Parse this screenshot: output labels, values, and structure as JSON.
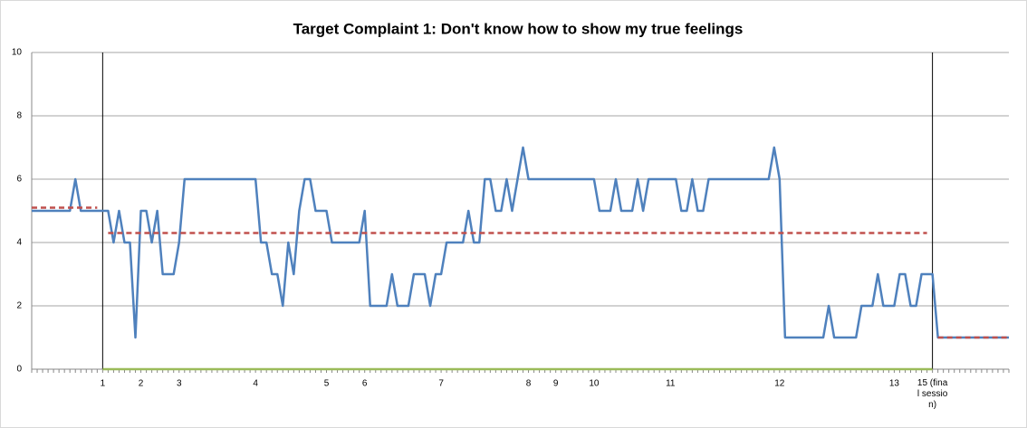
{
  "chart_data": {
    "type": "line",
    "title": "Target Complaint 1: Don't know how to show my true feelings",
    "categories": [
      null,
      null,
      null,
      null,
      null,
      null,
      null,
      null,
      null,
      null,
      null,
      null,
      null,
      "1",
      null,
      null,
      null,
      null,
      null,
      null,
      "2",
      null,
      null,
      null,
      null,
      null,
      null,
      "3",
      null,
      null,
      null,
      null,
      null,
      null,
      null,
      null,
      null,
      null,
      null,
      null,
      null,
      "4",
      null,
      null,
      null,
      null,
      null,
      null,
      null,
      null,
      null,
      null,
      null,
      null,
      "5",
      null,
      null,
      null,
      null,
      null,
      null,
      "6",
      null,
      null,
      null,
      null,
      null,
      null,
      null,
      null,
      null,
      null,
      null,
      null,
      null,
      "7",
      null,
      null,
      null,
      null,
      null,
      null,
      null,
      null,
      null,
      null,
      null,
      null,
      null,
      null,
      null,
      "8",
      null,
      null,
      null,
      null,
      "9",
      null,
      null,
      null,
      null,
      null,
      null,
      "10",
      null,
      null,
      null,
      null,
      null,
      null,
      null,
      null,
      null,
      null,
      null,
      null,
      null,
      "11",
      null,
      null,
      null,
      null,
      null,
      null,
      null,
      null,
      null,
      null,
      null,
      null,
      null,
      null,
      null,
      null,
      null,
      null,
      null,
      "12",
      null,
      null,
      null,
      null,
      null,
      null,
      null,
      null,
      null,
      null,
      null,
      null,
      null,
      null,
      null,
      null,
      null,
      null,
      null,
      null,
      "13",
      null,
      null,
      null,
      null,
      null,
      null,
      "15 (final session)",
      null,
      null,
      null,
      null,
      null,
      null,
      null,
      null,
      null,
      null,
      null,
      null,
      null,
      null
    ],
    "series": [
      {
        "color": "#4f81bd",
        "linestyle": "solid",
        "values": [
          5,
          5,
          5,
          5,
          5,
          5,
          5,
          5,
          6,
          5,
          5,
          5,
          5,
          5,
          5,
          4,
          5,
          4,
          4,
          1,
          5,
          5,
          4,
          5,
          3,
          3,
          3,
          4,
          6,
          6,
          6,
          6,
          6,
          6,
          6,
          6,
          6,
          6,
          6,
          6,
          6,
          6,
          4,
          4,
          3,
          3,
          2,
          4,
          3,
          5,
          6,
          6,
          5,
          5,
          5,
          4,
          4,
          4,
          4,
          4,
          4,
          5,
          2,
          2,
          2,
          2,
          3,
          2,
          2,
          2,
          3,
          3,
          3,
          2,
          3,
          3,
          4,
          4,
          4,
          4,
          5,
          4,
          4,
          6,
          6,
          5,
          5,
          6,
          5,
          6,
          7,
          6,
          6,
          6,
          6,
          6,
          6,
          6,
          6,
          6,
          6,
          6,
          6,
          6,
          5,
          5,
          5,
          6,
          5,
          5,
          5,
          6,
          5,
          6,
          6,
          6,
          6,
          6,
          6,
          5,
          5,
          6,
          5,
          5,
          6,
          6,
          6,
          6,
          6,
          6,
          6,
          6,
          6,
          6,
          6,
          6,
          7,
          6,
          1,
          1,
          1,
          1,
          1,
          1,
          1,
          1,
          2,
          1,
          1,
          1,
          1,
          1,
          2,
          2,
          2,
          3,
          2,
          2,
          2,
          3,
          3,
          2,
          2,
          3,
          3,
          3,
          1,
          1,
          1,
          1,
          1,
          1,
          1,
          1,
          1,
          1,
          1,
          1,
          1,
          1
        ]
      },
      {
        "color": "#c0504d",
        "linestyle": "dashed",
        "values": [
          5.1,
          5.1,
          5.1,
          5.1,
          5.1,
          5.1,
          5.1,
          5.1,
          5.1,
          5.1,
          5.1,
          5.1,
          5.1,
          null,
          4.3,
          4.3,
          4.3,
          4.3,
          4.3,
          4.3,
          4.3,
          4.3,
          4.3,
          4.3,
          4.3,
          4.3,
          4.3,
          4.3,
          4.3,
          4.3,
          4.3,
          4.3,
          4.3,
          4.3,
          4.3,
          4.3,
          4.3,
          4.3,
          4.3,
          4.3,
          4.3,
          4.3,
          4.3,
          4.3,
          4.3,
          4.3,
          4.3,
          4.3,
          4.3,
          4.3,
          4.3,
          4.3,
          4.3,
          4.3,
          4.3,
          4.3,
          4.3,
          4.3,
          4.3,
          4.3,
          4.3,
          4.3,
          4.3,
          4.3,
          4.3,
          4.3,
          4.3,
          4.3,
          4.3,
          4.3,
          4.3,
          4.3,
          4.3,
          4.3,
          4.3,
          4.3,
          4.3,
          4.3,
          4.3,
          4.3,
          4.3,
          4.3,
          4.3,
          4.3,
          4.3,
          4.3,
          4.3,
          4.3,
          4.3,
          4.3,
          4.3,
          4.3,
          4.3,
          4.3,
          4.3,
          4.3,
          4.3,
          4.3,
          4.3,
          4.3,
          4.3,
          4.3,
          4.3,
          4.3,
          4.3,
          4.3,
          4.3,
          4.3,
          4.3,
          4.3,
          4.3,
          4.3,
          4.3,
          4.3,
          4.3,
          4.3,
          4.3,
          4.3,
          4.3,
          4.3,
          4.3,
          4.3,
          4.3,
          4.3,
          4.3,
          4.3,
          4.3,
          4.3,
          4.3,
          4.3,
          4.3,
          4.3,
          4.3,
          4.3,
          4.3,
          4.3,
          4.3,
          4.3,
          4.3,
          4.3,
          4.3,
          4.3,
          4.3,
          4.3,
          4.3,
          4.3,
          4.3,
          4.3,
          4.3,
          4.3,
          4.3,
          4.3,
          4.3,
          4.3,
          4.3,
          4.3,
          4.3,
          4.3,
          4.3,
          4.3,
          4.3,
          4.3,
          4.3,
          4.3,
          4.3,
          null,
          1,
          1,
          1,
          1,
          1,
          1,
          1,
          1,
          1,
          1,
          1,
          1,
          1,
          1
        ]
      },
      {
        "color": "#9bbb59",
        "linestyle": "solid",
        "values": [
          null,
          null,
          null,
          null,
          null,
          null,
          null,
          null,
          null,
          null,
          null,
          null,
          null,
          0,
          0,
          0,
          0,
          0,
          0,
          0,
          0,
          0,
          0,
          0,
          0,
          0,
          0,
          0,
          0,
          0,
          0,
          0,
          0,
          0,
          0,
          0,
          0,
          0,
          0,
          0,
          0,
          0,
          0,
          0,
          0,
          0,
          0,
          0,
          0,
          0,
          0,
          0,
          0,
          0,
          0,
          0,
          0,
          0,
          0,
          0,
          0,
          0,
          0,
          0,
          0,
          0,
          0,
          0,
          0,
          0,
          0,
          0,
          0,
          0,
          0,
          0,
          0,
          0,
          0,
          0,
          0,
          0,
          0,
          0,
          0,
          0,
          0,
          0,
          0,
          0,
          0,
          0,
          0,
          0,
          0,
          0,
          0,
          0,
          0,
          0,
          0,
          0,
          0,
          0,
          0,
          0,
          0,
          0,
          0,
          0,
          0,
          0,
          0,
          0,
          0,
          0,
          0,
          0,
          0,
          0,
          0,
          0,
          0,
          0,
          0,
          0,
          0,
          0,
          0,
          0,
          0,
          0,
          0,
          0,
          0,
          0,
          0,
          0,
          0,
          0,
          0,
          0,
          0,
          0,
          0,
          0,
          0,
          0,
          0,
          0,
          0,
          0,
          0,
          0,
          0,
          0,
          0,
          0,
          0,
          0,
          0,
          0,
          0,
          0,
          0,
          0,
          null,
          null,
          null,
          null,
          null,
          null,
          null,
          null,
          null,
          null,
          null,
          null,
          null,
          null
        ]
      }
    ],
    "ylim": [
      0,
      10
    ],
    "yticks": [
      0,
      2,
      4,
      6,
      8,
      10
    ],
    "grid": true
  }
}
